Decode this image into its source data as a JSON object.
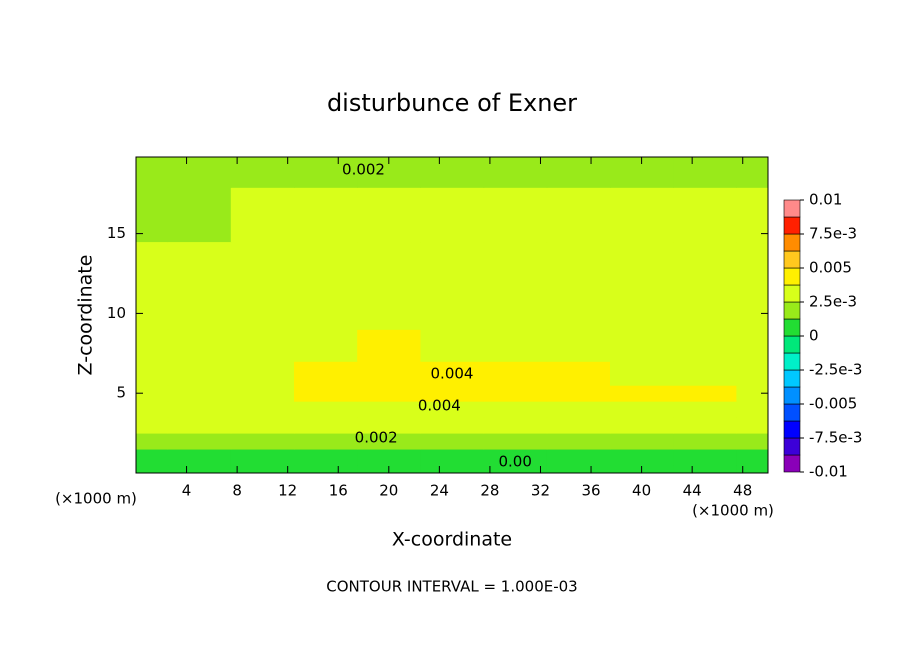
{
  "chart_data": {
    "type": "contour",
    "title": "disturbunce of Exner",
    "xlabel": "X-coordinate",
    "ylabel": "Z-coordinate",
    "xunit": "(×1000 m)",
    "yunit": "(×1000 m)",
    "annotation": "CONTOUR INTERVAL = 1.000E-03",
    "xlim": [
      0,
      50
    ],
    "ylim": [
      0,
      19.8
    ],
    "xticks": [
      4,
      8,
      12,
      16,
      20,
      24,
      28,
      32,
      36,
      40,
      44,
      48
    ],
    "yticks": [
      5,
      10,
      15
    ],
    "x": [
      0,
      5,
      10,
      15,
      20,
      25,
      30,
      35,
      40,
      45,
      50
    ],
    "y": [
      0,
      1,
      2,
      3,
      4,
      5,
      6,
      8,
      10,
      13,
      16,
      19.8
    ],
    "z": [
      [
        0.0005,
        0.0005,
        0.0005,
        0.0005,
        0.0005,
        0.0005,
        0.0005,
        0.0005,
        0.0005,
        0.0005,
        0.0005
      ],
      [
        0.0012,
        0.0012,
        0.0012,
        0.0012,
        0.0012,
        0.0012,
        0.0012,
        0.0012,
        0.0012,
        0.0012,
        0.0012
      ],
      [
        0.0019,
        0.0019,
        0.0019,
        0.0019,
        0.0019,
        0.0019,
        0.0019,
        0.0019,
        0.0019,
        0.0019,
        0.0019
      ],
      [
        0.0026,
        0.0026,
        0.0026,
        0.0026,
        0.0026,
        0.0026,
        0.0026,
        0.0026,
        0.0026,
        0.0026,
        0.0026
      ],
      [
        0.0032,
        0.0032,
        0.0032,
        0.0033,
        0.0033,
        0.0033,
        0.0033,
        0.0033,
        0.0033,
        0.0033,
        0.0032
      ],
      [
        0.0036,
        0.0035,
        0.0036,
        0.0039,
        0.0043,
        0.004,
        0.0041,
        0.0043,
        0.0039,
        0.0041,
        0.0037
      ],
      [
        0.0034,
        0.0034,
        0.0035,
        0.0038,
        0.0043,
        0.0039,
        0.004,
        0.0042,
        0.0037,
        0.0037,
        0.0035
      ],
      [
        0.0031,
        0.0032,
        0.0033,
        0.0036,
        0.0041,
        0.0037,
        0.0036,
        0.0036,
        0.0035,
        0.0034,
        0.0033
      ],
      [
        0.0029,
        0.0028,
        0.0029,
        0.0033,
        0.0035,
        0.0035,
        0.0034,
        0.0034,
        0.0033,
        0.0032,
        0.0031
      ],
      [
        0.0027,
        0.0026,
        0.0027,
        0.0029,
        0.003,
        0.0031,
        0.003,
        0.003,
        0.003,
        0.0029,
        0.0028
      ],
      [
        0.0024,
        0.0024,
        0.0025,
        0.0026,
        0.0027,
        0.0027,
        0.0027,
        0.0027,
        0.0026,
        0.0026,
        0.0025
      ],
      [
        0.0021,
        0.0021,
        0.0021,
        0.0021,
        0.0021,
        0.0021,
        0.0021,
        0.0021,
        0.0021,
        0.0021,
        0.0021
      ]
    ],
    "contour_labels": [
      {
        "text": "0.002",
        "x": 18,
        "y": 19
      },
      {
        "text": "0.004",
        "x": 25,
        "y": 6.2
      },
      {
        "text": "0.004",
        "x": 24,
        "y": 4.2
      },
      {
        "text": "0.002",
        "x": 19,
        "y": 2.2
      },
      {
        "text": "0.00",
        "x": 30,
        "y": 0.7
      }
    ],
    "colorbar": {
      "lim": [
        -0.01,
        0.01
      ],
      "ticks": [
        0.01,
        {
          "value": 0.0075,
          "label": "7.5e-3"
        },
        0.005,
        {
          "value": 0.0025,
          "label": "2.5e-3"
        },
        0,
        {
          "value": -0.0025,
          "label": "-2.5e-3"
        },
        -0.005,
        {
          "value": -0.0075,
          "label": "-7.5e-3"
        },
        -0.01
      ],
      "levels": [
        -0.01,
        -0.00875,
        -0.0075,
        -0.00625,
        -0.005,
        -0.00375,
        -0.0025,
        -0.00125,
        0,
        0.00125,
        0.0025,
        0.00375,
        0.005,
        0.00625,
        0.0075,
        0.00875,
        0.01
      ],
      "colors": [
        "#8a00b8",
        "#3c00d8",
        "#0000ff",
        "#0050ff",
        "#0090ff",
        "#00c8ff",
        "#00f0c8",
        "#00e87a",
        "#22dd33",
        "#99ea1a",
        "#d8ff1a",
        "#fff000",
        "#ffc81e",
        "#ff8c00",
        "#ff2000",
        "#ff8a8a"
      ]
    }
  }
}
